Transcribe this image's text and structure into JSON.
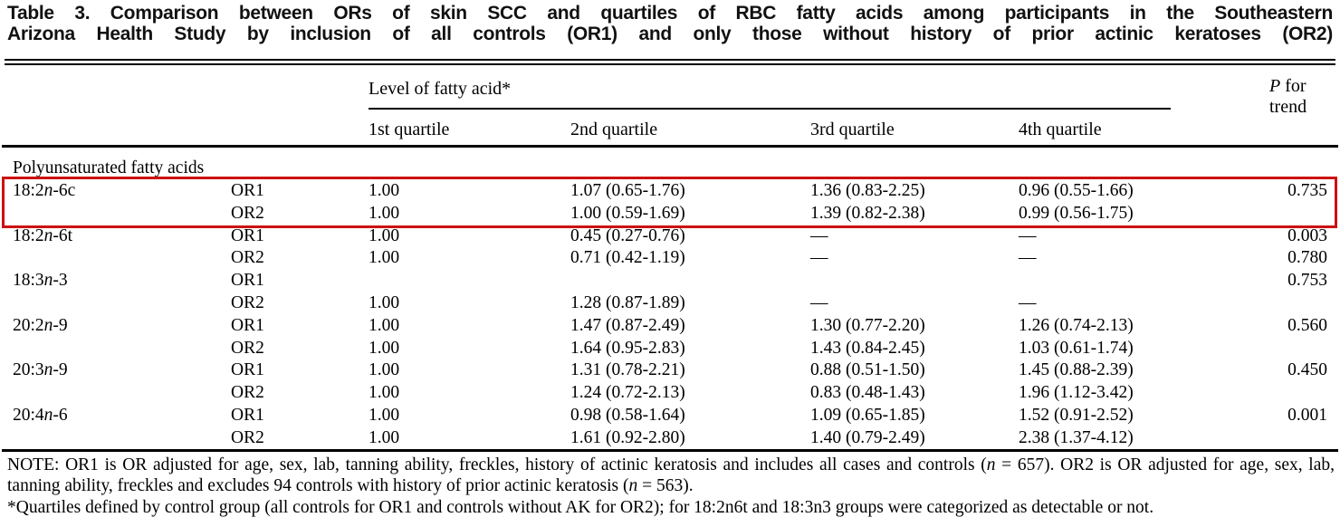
{
  "title": {
    "line1": "Table 3. Comparison between ORs of skin SCC and quartiles of RBC fatty acids among participants in the Southeastern",
    "line2": "Arizona Health Study by inclusion of all controls (OR1) and only those without history of prior actinic keratoses (OR2)"
  },
  "header": {
    "span_label": "Level of fatty acid*",
    "quartiles": [
      "1st quartile",
      "2nd quartile",
      "3rd quartile",
      "4th quartile"
    ],
    "p_for_trend_line1": [
      {
        "i": "P"
      },
      {
        "t": " for"
      }
    ],
    "p_for_trend_line2": "trend"
  },
  "table": {
    "section_label": "Polyunsaturated fatty acids",
    "rows": [
      {
        "acid": [
          {
            "t": "18:2"
          },
          {
            "i": "n"
          },
          {
            "t": "-6c"
          }
        ],
        "or": "OR1",
        "cells": [
          "1.00",
          "1.07 (0.65-1.76)",
          "1.36 (0.83-2.25)",
          "0.96 (0.55-1.66)"
        ],
        "p": "0.735",
        "highlight": true
      },
      {
        "acid": [],
        "or": "OR2",
        "cells": [
          "1.00",
          "1.00 (0.59-1.69)",
          "1.39 (0.82-2.38)",
          "0.99 (0.56-1.75)"
        ],
        "p": "",
        "highlight": true
      },
      {
        "acid": [
          {
            "t": "18:2"
          },
          {
            "i": "n"
          },
          {
            "t": "-6t"
          }
        ],
        "or": "OR1",
        "cells": [
          "1.00",
          "0.45 (0.27-0.76)",
          "—",
          "—"
        ],
        "p": "0.003",
        "highlight": false
      },
      {
        "acid": [],
        "or": "OR2",
        "cells": [
          "1.00",
          "0.71 (0.42-1.19)",
          "—",
          "—"
        ],
        "p": "0.780",
        "highlight": false
      },
      {
        "acid": [
          {
            "t": "18:3"
          },
          {
            "i": "n"
          },
          {
            "t": "-3"
          }
        ],
        "or": "OR1",
        "cells": [
          "",
          "",
          "",
          ""
        ],
        "p": "0.753",
        "highlight": false
      },
      {
        "acid": [],
        "or": "OR2",
        "cells": [
          "1.00",
          "1.28 (0.87-1.89)",
          "—",
          "—"
        ],
        "p": "",
        "highlight": false
      },
      {
        "acid": [
          {
            "t": "20:2"
          },
          {
            "i": "n"
          },
          {
            "t": "-9"
          }
        ],
        "or": "OR1",
        "cells": [
          "1.00",
          "1.47 (0.87-2.49)",
          "1.30 (0.77-2.20)",
          "1.26 (0.74-2.13)"
        ],
        "p": "0.560",
        "highlight": false
      },
      {
        "acid": [],
        "or": "OR2",
        "cells": [
          "1.00",
          "1.64 (0.95-2.83)",
          "1.43 (0.84-2.45)",
          "1.03 (0.61-1.74)"
        ],
        "p": "",
        "highlight": false
      },
      {
        "acid": [
          {
            "t": "20:3"
          },
          {
            "i": "n"
          },
          {
            "t": "-9"
          }
        ],
        "or": "OR1",
        "cells": [
          "1.00",
          "1.31 (0.78-2.21)",
          "0.88 (0.51-1.50)",
          "1.45 (0.88-2.39)"
        ],
        "p": "0.450",
        "highlight": false
      },
      {
        "acid": [],
        "or": "OR2",
        "cells": [
          "1.00",
          "1.24 (0.72-2.13)",
          "0.83 (0.48-1.43)",
          "1.96 (1.12-3.42)"
        ],
        "p": "",
        "highlight": false
      },
      {
        "acid": [
          {
            "t": "20:4"
          },
          {
            "i": "n"
          },
          {
            "t": "-6"
          }
        ],
        "or": "OR1",
        "cells": [
          "1.00",
          "0.98 (0.58-1.64)",
          "1.09 (0.65-1.85)",
          "1.52 (0.91-2.52)"
        ],
        "p": "0.001",
        "highlight": false
      },
      {
        "acid": [],
        "or": "OR2",
        "cells": [
          "1.00",
          "1.61 (0.92-2.80)",
          "1.40 (0.79-2.49)",
          "2.38 (1.37-4.12)"
        ],
        "p": "",
        "highlight": false
      }
    ]
  },
  "annotation": {
    "highlight_color": "#cc1111"
  },
  "notes": {
    "note": [
      {
        "t": "NOTE: OR1 is OR adjusted for age, sex, lab, tanning ability, freckles, history of actinic keratosis and includes all cases and controls ("
      },
      {
        "i": "n"
      },
      {
        "t": " = 657). OR2 is OR adjusted for age, sex, lab, tanning ability, freckles and excludes 94 controls with history of prior actinic keratosis ("
      },
      {
        "i": "n"
      },
      {
        "t": " = 563)."
      }
    ],
    "asterisk": [
      {
        "t": "*Quartiles defined by control group (all controls for OR1 and controls without AK for OR2); for 18:2n6t and 18:3n3 groups were categorized as detectable or not."
      }
    ]
  }
}
